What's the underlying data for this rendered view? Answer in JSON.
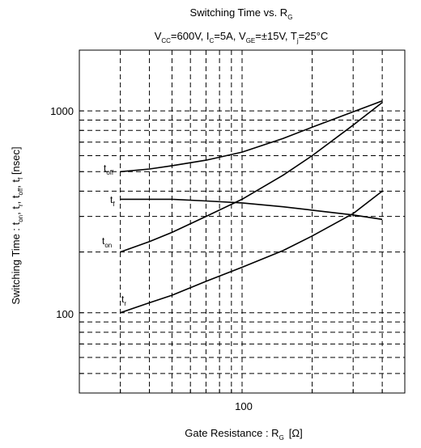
{
  "chart_data": {
    "type": "line",
    "title": "Switching Time vs. R",
    "title_sub": "G",
    "subtitle": {
      "vcc": [
        "V",
        "CC",
        "=600V, "
      ],
      "ic": [
        "I",
        "C",
        "=5A, "
      ],
      "vge": [
        "V",
        "GE",
        "=±15V, "
      ],
      "tj": [
        "T",
        "j",
        "=25°C"
      ]
    },
    "xlabel": "Gate Resistance  : R",
    "xlabel_sub": "G",
    "xlabel_unit": "[Ω]",
    "ylabel_parts": [
      "Switching Time : t",
      "on",
      ", t",
      "r",
      ", t",
      "off",
      ", t",
      "f",
      "  [nsec]"
    ],
    "x_scale": "log",
    "y_scale": "log",
    "xlim": [
      20,
      500
    ],
    "ylim": [
      40,
      2000
    ],
    "x_ticks": [
      {
        "value": 100,
        "label": "100"
      }
    ],
    "y_ticks": [
      {
        "value": 100,
        "label": "100"
      },
      {
        "value": 1000,
        "label": "1000"
      }
    ],
    "grid": true,
    "grid_style": "dashed",
    "series": [
      {
        "name": [
          "t",
          "off"
        ],
        "x": [
          30,
          40,
          50,
          70,
          100,
          150,
          200,
          300,
          400
        ],
        "y": [
          500,
          515,
          535,
          570,
          625,
          730,
          830,
          990,
          1120
        ]
      },
      {
        "name": [
          "t",
          "f"
        ],
        "x": [
          30,
          40,
          50,
          70,
          100,
          150,
          200,
          300,
          400
        ],
        "y": [
          365,
          365,
          365,
          358,
          350,
          335,
          322,
          305,
          290
        ]
      },
      {
        "name": [
          "t",
          "on"
        ],
        "x": [
          30,
          40,
          50,
          70,
          100,
          150,
          200,
          300,
          400
        ],
        "y": [
          200,
          225,
          250,
          300,
          365,
          480,
          600,
          850,
          1100
        ]
      },
      {
        "name": [
          "t",
          "r"
        ],
        "x": [
          30,
          40,
          50,
          70,
          100,
          150,
          200,
          300,
          400
        ],
        "y": [
          100,
          112,
          122,
          143,
          168,
          203,
          240,
          310,
          400
        ]
      }
    ]
  }
}
